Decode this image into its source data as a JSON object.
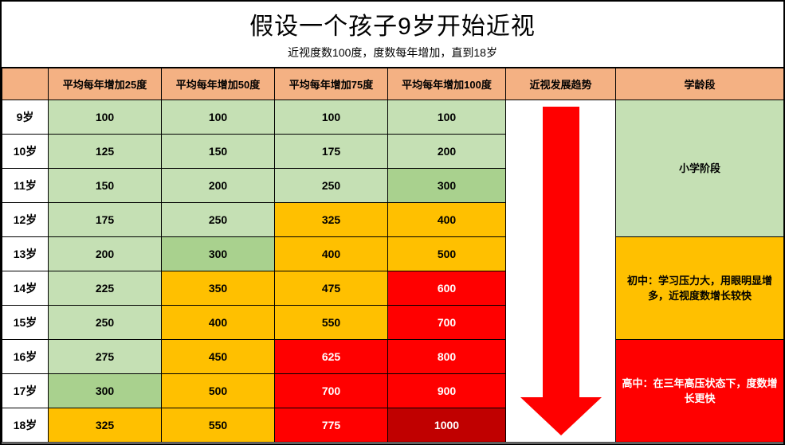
{
  "title": "假设一个孩子9岁开始近视",
  "subtitle": "近视度数100度，度数每年增加，直到18岁",
  "colors": {
    "header_orange": "#f4b183",
    "green_light": "#c5e0b4",
    "green_mid": "#a9d18e",
    "orange": "#ffc000",
    "red": "#ff0000",
    "red_dark": "#c00000",
    "white": "#ffffff",
    "black": "#000000"
  },
  "col_widths": [
    "58px",
    "142px",
    "142px",
    "142px",
    "148px",
    "138px",
    "211px"
  ],
  "headers": [
    "",
    "平均每年增加25度",
    "平均每年增加50度",
    "平均每年增加75度",
    "平均每年增加100度",
    "近视发展趋势",
    "学龄段"
  ],
  "ages": [
    "9岁",
    "10岁",
    "11岁",
    "12岁",
    "13岁",
    "14岁",
    "15岁",
    "16岁",
    "17岁",
    "18岁"
  ],
  "cells": [
    [
      {
        "v": "100",
        "bg": "green_light"
      },
      {
        "v": "100",
        "bg": "green_light"
      },
      {
        "v": "100",
        "bg": "green_light"
      },
      {
        "v": "100",
        "bg": "green_light"
      }
    ],
    [
      {
        "v": "125",
        "bg": "green_light"
      },
      {
        "v": "150",
        "bg": "green_light"
      },
      {
        "v": "175",
        "bg": "green_light"
      },
      {
        "v": "200",
        "bg": "green_light"
      }
    ],
    [
      {
        "v": "150",
        "bg": "green_light"
      },
      {
        "v": "200",
        "bg": "green_light"
      },
      {
        "v": "250",
        "bg": "green_light"
      },
      {
        "v": "300",
        "bg": "green_mid"
      }
    ],
    [
      {
        "v": "175",
        "bg": "green_light"
      },
      {
        "v": "250",
        "bg": "green_light"
      },
      {
        "v": "325",
        "bg": "orange"
      },
      {
        "v": "400",
        "bg": "orange"
      }
    ],
    [
      {
        "v": "200",
        "bg": "green_light"
      },
      {
        "v": "300",
        "bg": "green_mid"
      },
      {
        "v": "400",
        "bg": "orange"
      },
      {
        "v": "500",
        "bg": "orange"
      }
    ],
    [
      {
        "v": "225",
        "bg": "green_light"
      },
      {
        "v": "350",
        "bg": "orange"
      },
      {
        "v": "475",
        "bg": "orange"
      },
      {
        "v": "600",
        "bg": "red",
        "fg": "white"
      }
    ],
    [
      {
        "v": "250",
        "bg": "green_light"
      },
      {
        "v": "400",
        "bg": "orange"
      },
      {
        "v": "550",
        "bg": "orange"
      },
      {
        "v": "700",
        "bg": "red",
        "fg": "white"
      }
    ],
    [
      {
        "v": "275",
        "bg": "green_light"
      },
      {
        "v": "450",
        "bg": "orange"
      },
      {
        "v": "625",
        "bg": "red",
        "fg": "white"
      },
      {
        "v": "800",
        "bg": "red",
        "fg": "white"
      }
    ],
    [
      {
        "v": "300",
        "bg": "green_mid"
      },
      {
        "v": "500",
        "bg": "orange"
      },
      {
        "v": "700",
        "bg": "red",
        "fg": "white"
      },
      {
        "v": "900",
        "bg": "red",
        "fg": "white"
      }
    ],
    [
      {
        "v": "325",
        "bg": "orange"
      },
      {
        "v": "550",
        "bg": "orange"
      },
      {
        "v": "775",
        "bg": "red",
        "fg": "white"
      },
      {
        "v": "1000",
        "bg": "red_dark",
        "fg": "white"
      }
    ]
  ],
  "stages": [
    {
      "text": "小学阶段",
      "bg": "green_light",
      "fg": "black",
      "rowspan": 4
    },
    {
      "text": "初中：学习压力大，用眼明显增多，近视度数增长较快",
      "bg": "orange",
      "fg": "black",
      "rowspan": 3
    },
    {
      "text": "高中：在三年高压状态下，度数增长更快",
      "bg": "red",
      "fg": "white",
      "rowspan": 3
    }
  ]
}
